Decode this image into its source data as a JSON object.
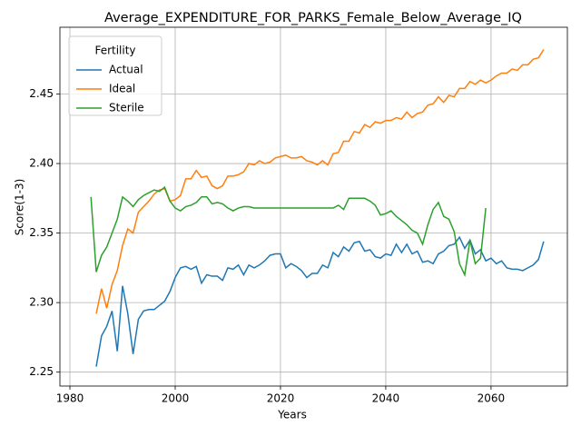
{
  "chart_data": {
    "type": "line",
    "title": "Average_EXPENDITURE_FOR_PARKS_Female_Below_Average_IQ",
    "xlabel": "Years",
    "ylabel": "Score(1-3)",
    "legend_title": "Fertility",
    "legend": "upper left",
    "grid": true,
    "xlim": [
      1978.1,
      2074.5
    ],
    "ylim": [
      2.24,
      2.498
    ],
    "xticks": [
      1980,
      2000,
      2020,
      2040,
      2060
    ],
    "yticks": [
      2.25,
      {
        "value": 2.3,
        "label": "2.30"
      },
      2.35,
      {
        "value": 2.4,
        "label": "2.40"
      },
      2.45
    ],
    "series": [
      {
        "name": "Actual",
        "color": "#1f77b4",
        "x": [
          1985,
          1986,
          1987,
          1988,
          1989,
          1990,
          1991,
          1992,
          1993,
          1994,
          1995,
          1996,
          1997,
          1998,
          1999,
          2000,
          2001,
          2002,
          2003,
          2004,
          2005,
          2006,
          2007,
          2008,
          2009,
          2010,
          2011,
          2012,
          2013,
          2014,
          2015,
          2016,
          2017,
          2018,
          2019,
          2020,
          2021,
          2022,
          2023,
          2024,
          2025,
          2026,
          2027,
          2028,
          2029,
          2030,
          2031,
          2032,
          2033,
          2034,
          2035,
          2036,
          2037,
          2038,
          2039,
          2040,
          2041,
          2042,
          2043,
          2044,
          2045,
          2046,
          2047,
          2048,
          2049,
          2050,
          2051,
          2052,
          2053,
          2054,
          2055,
          2056,
          2057,
          2058,
          2059,
          2060,
          2061,
          2062,
          2063,
          2064,
          2065,
          2066,
          2067,
          2068,
          2069,
          2070
        ],
        "values": [
          2.254,
          2.276,
          2.283,
          2.294,
          2.265,
          2.312,
          2.292,
          2.263,
          2.288,
          2.294,
          2.295,
          2.295,
          2.298,
          2.301,
          2.308,
          2.318,
          2.325,
          2.326,
          2.324,
          2.326,
          2.314,
          2.32,
          2.319,
          2.319,
          2.316,
          2.325,
          2.324,
          2.327,
          2.32,
          2.327,
          2.325,
          2.327,
          2.33,
          2.334,
          2.335,
          2.335,
          2.325,
          2.328,
          2.326,
          2.323,
          2.318,
          2.321,
          2.321,
          2.327,
          2.325,
          2.336,
          2.333,
          2.34,
          2.337,
          2.343,
          2.344,
          2.337,
          2.338,
          2.333,
          2.332,
          2.335,
          2.334,
          2.342,
          2.336,
          2.342,
          2.335,
          2.337,
          2.329,
          2.33,
          2.328,
          2.335,
          2.337,
          2.341,
          2.342,
          2.347,
          2.339,
          2.345,
          2.335,
          2.338,
          2.33,
          2.332,
          2.328,
          2.33,
          2.325,
          2.324,
          2.324,
          2.323,
          2.325,
          2.327,
          2.331,
          2.344
        ]
      },
      {
        "name": "Ideal",
        "color": "#ff7f0e",
        "x": [
          1985,
          1986,
          1987,
          1988,
          1989,
          1990,
          1991,
          1992,
          1993,
          1994,
          1995,
          1996,
          1997,
          1998,
          1999,
          2000,
          2001,
          2002,
          2003,
          2004,
          2005,
          2006,
          2007,
          2008,
          2009,
          2010,
          2011,
          2012,
          2013,
          2014,
          2015,
          2016,
          2017,
          2018,
          2019,
          2020,
          2021,
          2022,
          2023,
          2024,
          2025,
          2026,
          2027,
          2028,
          2029,
          2030,
          2031,
          2032,
          2033,
          2034,
          2035,
          2036,
          2037,
          2038,
          2039,
          2040,
          2041,
          2042,
          2043,
          2044,
          2045,
          2046,
          2047,
          2048,
          2049,
          2050,
          2051,
          2052,
          2053,
          2054,
          2055,
          2056,
          2057,
          2058,
          2059,
          2060,
          2061,
          2062,
          2063,
          2064,
          2065,
          2066,
          2067,
          2068,
          2069,
          2070
        ],
        "values": [
          2.292,
          2.31,
          2.296,
          2.313,
          2.323,
          2.341,
          2.353,
          2.35,
          2.365,
          2.369,
          2.373,
          2.378,
          2.381,
          2.382,
          2.373,
          2.374,
          2.377,
          2.389,
          2.389,
          2.395,
          2.39,
          2.391,
          2.384,
          2.382,
          2.384,
          2.391,
          2.391,
          2.392,
          2.394,
          2.4,
          2.399,
          2.402,
          2.4,
          2.401,
          2.404,
          2.405,
          2.406,
          2.404,
          2.404,
          2.405,
          2.402,
          2.401,
          2.399,
          2.402,
          2.399,
          2.407,
          2.408,
          2.416,
          2.416,
          2.423,
          2.422,
          2.428,
          2.426,
          2.43,
          2.429,
          2.431,
          2.431,
          2.433,
          2.432,
          2.437,
          2.433,
          2.436,
          2.437,
          2.442,
          2.443,
          2.448,
          2.444,
          2.449,
          2.448,
          2.454,
          2.454,
          2.459,
          2.457,
          2.46,
          2.458,
          2.46,
          2.463,
          2.465,
          2.465,
          2.468,
          2.467,
          2.471,
          2.471,
          2.475,
          2.476,
          2.482
        ]
      },
      {
        "name": "Sterile",
        "color": "#2ca02c",
        "x": [
          1984,
          1985,
          1986,
          1987,
          1988,
          1989,
          1990,
          1991,
          1992,
          1993,
          1994,
          1995,
          1996,
          1997,
          1998,
          1999,
          2000,
          2001,
          2002,
          2003,
          2004,
          2005,
          2006,
          2007,
          2008,
          2009,
          2010,
          2011,
          2012,
          2013,
          2014,
          2015,
          2016,
          2017,
          2018,
          2019,
          2020,
          2021,
          2022,
          2023,
          2024,
          2025,
          2026,
          2027,
          2028,
          2029,
          2030,
          2031,
          2032,
          2033,
          2034,
          2035,
          2036,
          2037,
          2038,
          2039,
          2040,
          2041,
          2042,
          2043,
          2044,
          2045,
          2046,
          2047,
          2048,
          2049,
          2050,
          2051,
          2052,
          2053,
          2054,
          2055,
          2056,
          2057,
          2058,
          2059
        ],
        "values": [
          2.376,
          2.322,
          2.334,
          2.34,
          2.35,
          2.36,
          2.376,
          2.373,
          2.369,
          2.374,
          2.377,
          2.379,
          2.381,
          2.38,
          2.383,
          2.373,
          2.368,
          2.366,
          2.369,
          2.37,
          2.372,
          2.376,
          2.376,
          2.371,
          2.372,
          2.371,
          2.368,
          2.366,
          2.368,
          2.369,
          2.369,
          2.368,
          2.368,
          2.368,
          2.368,
          2.368,
          2.368,
          2.368,
          2.368,
          2.368,
          2.368,
          2.368,
          2.368,
          2.368,
          2.368,
          2.368,
          2.368,
          2.37,
          2.367,
          2.375,
          2.375,
          2.375,
          2.375,
          2.373,
          2.37,
          2.363,
          2.364,
          2.366,
          2.362,
          2.359,
          2.356,
          2.352,
          2.35,
          2.342,
          2.356,
          2.367,
          2.372,
          2.362,
          2.36,
          2.351,
          2.328,
          2.32,
          2.345,
          2.328,
          2.332,
          2.368
        ]
      }
    ]
  }
}
